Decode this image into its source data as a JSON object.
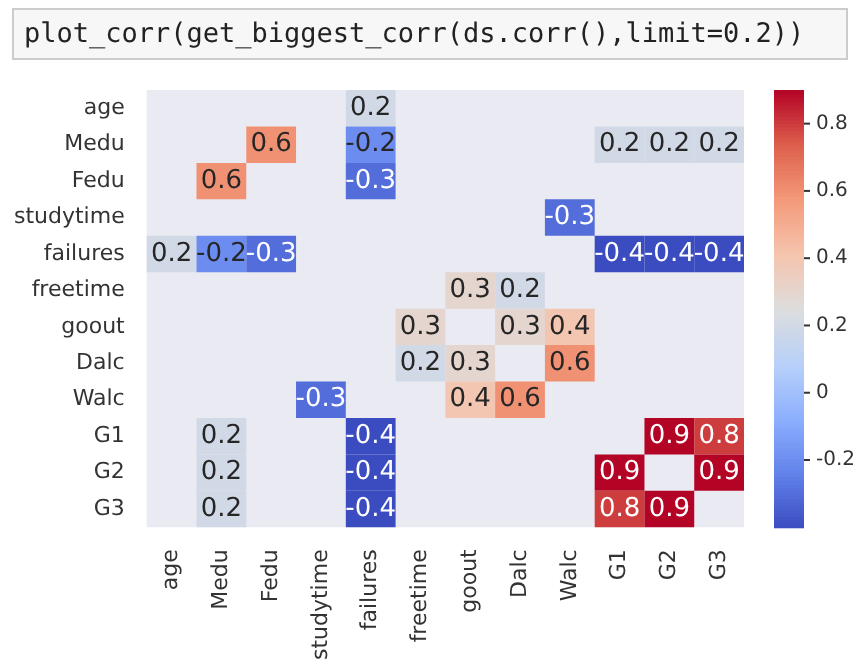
{
  "chart_data": {
    "type": "heatmap",
    "title": "plot_corr(get_biggest_corr(ds.corr(),limit=0.2))",
    "categories": [
      "age",
      "Medu",
      "Fedu",
      "studytime",
      "failures",
      "freetime",
      "goout",
      "Dalc",
      "Walc",
      "G1",
      "G2",
      "G3"
    ],
    "y_categories": [
      "age",
      "Medu",
      "Fedu",
      "studytime",
      "failures",
      "freetime",
      "goout",
      "Dalc",
      "Walc",
      "G1",
      "G2",
      "G3"
    ],
    "cells": [
      [
        null,
        null,
        null,
        null,
        0.2,
        null,
        null,
        null,
        null,
        null,
        null,
        null
      ],
      [
        null,
        null,
        0.6,
        null,
        -0.2,
        null,
        null,
        null,
        null,
        0.2,
        0.2,
        0.2
      ],
      [
        null,
        0.6,
        null,
        null,
        -0.3,
        null,
        null,
        null,
        null,
        null,
        null,
        null
      ],
      [
        null,
        null,
        null,
        null,
        null,
        null,
        null,
        null,
        -0.3,
        null,
        null,
        null
      ],
      [
        0.2,
        -0.2,
        -0.3,
        null,
        null,
        null,
        null,
        null,
        null,
        -0.4,
        -0.4,
        -0.4
      ],
      [
        null,
        null,
        null,
        null,
        null,
        null,
        0.3,
        0.2,
        null,
        null,
        null,
        null
      ],
      [
        null,
        null,
        null,
        null,
        null,
        0.3,
        null,
        0.3,
        0.4,
        null,
        null,
        null
      ],
      [
        null,
        null,
        null,
        null,
        null,
        0.2,
        0.3,
        null,
        0.6,
        null,
        null,
        null
      ],
      [
        null,
        null,
        null,
        -0.3,
        null,
        null,
        0.4,
        0.6,
        null,
        null,
        null,
        null
      ],
      [
        null,
        0.2,
        null,
        null,
        -0.4,
        null,
        null,
        null,
        null,
        null,
        0.9,
        0.8
      ],
      [
        null,
        0.2,
        null,
        null,
        -0.4,
        null,
        null,
        null,
        null,
        0.9,
        null,
        0.9
      ],
      [
        null,
        0.2,
        null,
        null,
        -0.4,
        null,
        null,
        null,
        null,
        0.8,
        0.9,
        null
      ]
    ],
    "data_labels": true,
    "clim": [
      -0.4,
      0.9
    ],
    "cticks": [
      -0.2,
      0,
      0.2,
      0.4,
      0.6,
      0.8
    ]
  }
}
